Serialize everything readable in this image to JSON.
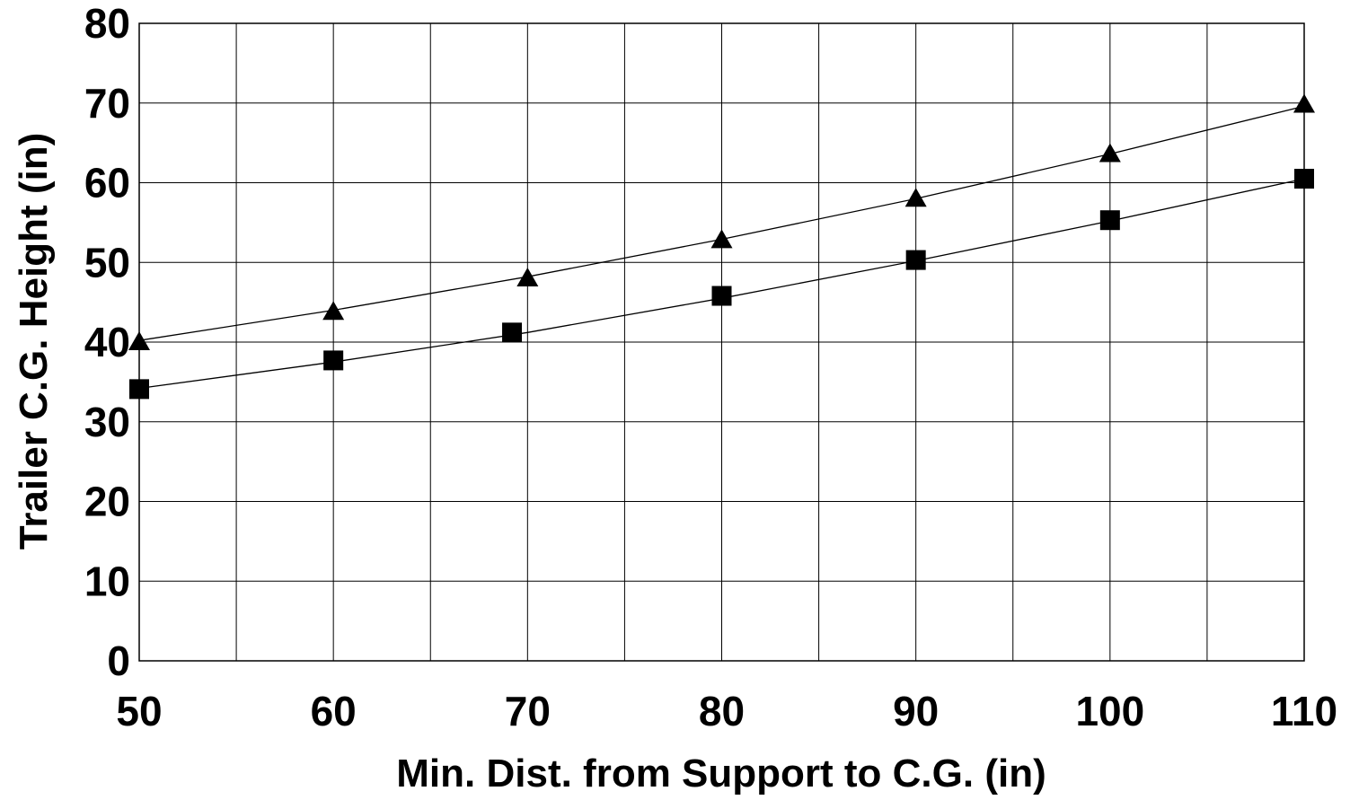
{
  "chart_data": {
    "type": "scatter",
    "title": "",
    "xlabel": "Min. Dist. from Support to C.G. (in)",
    "ylabel": "Trailer C.G. Height (in)",
    "xlim": [
      50,
      110
    ],
    "ylim": [
      0,
      80
    ],
    "x_ticks": [
      50,
      60,
      70,
      80,
      90,
      100,
      110
    ],
    "y_ticks": [
      0,
      10,
      20,
      30,
      40,
      50,
      60,
      70,
      80
    ],
    "x_gridlines": [
      50,
      55,
      60,
      65,
      70,
      75,
      80,
      85,
      90,
      95,
      100,
      105,
      110
    ],
    "y_gridlines": [
      0,
      10,
      20,
      30,
      40,
      50,
      60,
      70,
      80
    ],
    "grid": true,
    "legend": "none",
    "series": [
      {
        "marker": "triangle",
        "color": "#000000",
        "points": [
          {
            "x": 50,
            "y": 40
          },
          {
            "x": 60,
            "y": 43.8
          },
          {
            "x": 70,
            "y": 48
          },
          {
            "x": 80,
            "y": 52.8
          },
          {
            "x": 90,
            "y": 58
          },
          {
            "x": 100,
            "y": 63.6
          },
          {
            "x": 110,
            "y": 69.8
          }
        ],
        "trendline": [
          {
            "x": 50,
            "y": 40.2
          },
          {
            "x": 60,
            "y": 44
          },
          {
            "x": 70,
            "y": 48.2
          },
          {
            "x": 80,
            "y": 52.9
          },
          {
            "x": 90,
            "y": 58
          },
          {
            "x": 100,
            "y": 63.6
          },
          {
            "x": 110,
            "y": 69.6
          }
        ]
      },
      {
        "marker": "square",
        "color": "#000000",
        "points": [
          {
            "x": 50,
            "y": 34.1
          },
          {
            "x": 60,
            "y": 37.7
          },
          {
            "x": 69.2,
            "y": 41.2
          },
          {
            "x": 80,
            "y": 45.8
          },
          {
            "x": 90,
            "y": 50.3
          },
          {
            "x": 100,
            "y": 55.3
          },
          {
            "x": 110,
            "y": 60.5
          }
        ],
        "trendline": [
          {
            "x": 50,
            "y": 34.2
          },
          {
            "x": 60,
            "y": 37.5
          },
          {
            "x": 70,
            "y": 41.2
          },
          {
            "x": 80,
            "y": 45.5
          },
          {
            "x": 90,
            "y": 50.2
          },
          {
            "x": 100,
            "y": 55.2
          },
          {
            "x": 110,
            "y": 60.5
          }
        ]
      }
    ]
  }
}
